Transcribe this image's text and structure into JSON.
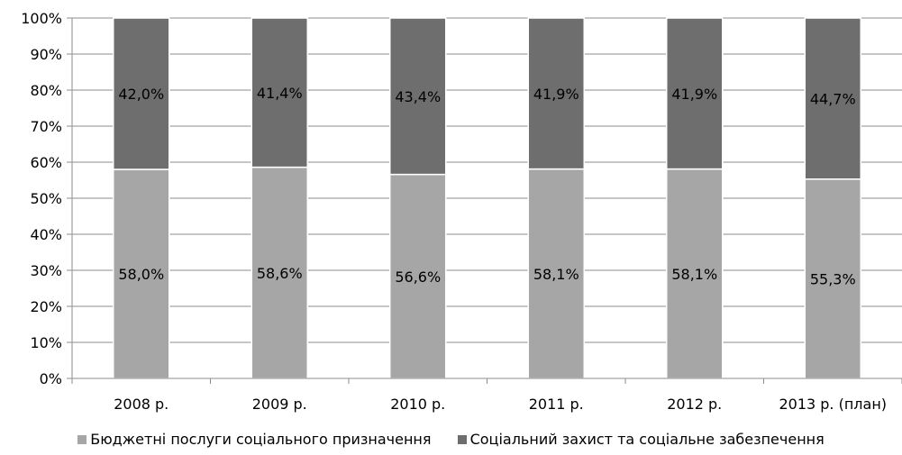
{
  "chart_data": {
    "type": "bar",
    "stacked": "percent",
    "categories": [
      "2008 р.",
      "2009 р.",
      "2010 р.",
      "2011 р.",
      "2012 р.",
      "2013 р. (план)"
    ],
    "series": [
      {
        "name": "Бюджетні послуги соціального призначення",
        "values": [
          58.0,
          58.6,
          56.6,
          58.1,
          58.1,
          55.3
        ],
        "labels": [
          "58,0%",
          "58,6%",
          "56,6%",
          "58,1%",
          "58,1%",
          "55,3%"
        ],
        "color": "#a6a6a6"
      },
      {
        "name": "Соціальний захист та соціальне забезпечення",
        "values": [
          42.0,
          41.4,
          43.4,
          41.9,
          41.9,
          44.7
        ],
        "labels": [
          "42,0%",
          "41,4%",
          "43,4%",
          "41,9%",
          "41,9%",
          "44,7%"
        ],
        "color": "#6e6e6e"
      }
    ],
    "y_ticks": [
      "0%",
      "10%",
      "20%",
      "30%",
      "40%",
      "50%",
      "60%",
      "70%",
      "80%",
      "90%",
      "100%"
    ],
    "ylim": [
      0,
      100
    ],
    "grid": true,
    "legend_position": "bottom"
  }
}
